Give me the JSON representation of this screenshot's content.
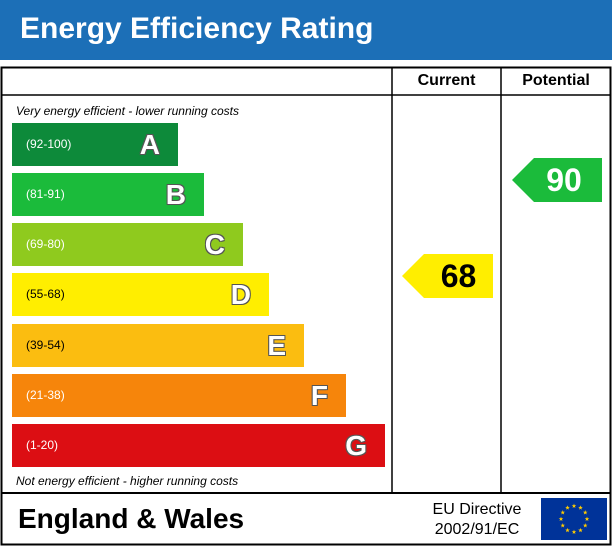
{
  "header": {
    "title": "Energy Efficiency Rating"
  },
  "columns": {
    "current": "Current",
    "potential": "Potential"
  },
  "notes": {
    "top": "Very energy efficient - lower running costs",
    "bottom": "Not energy efficient - higher running costs"
  },
  "chart_data": {
    "type": "bar",
    "title": "Energy Efficiency Rating",
    "bands": [
      {
        "letter": "A",
        "range": "(92-100)",
        "color": "#0d8a3a"
      },
      {
        "letter": "B",
        "range": "(81-91)",
        "color": "#1bbb3b"
      },
      {
        "letter": "C",
        "range": "(69-80)",
        "color": "#8fca1e"
      },
      {
        "letter": "D",
        "range": "(55-68)",
        "color": "#ffee00"
      },
      {
        "letter": "E",
        "range": "(39-54)",
        "color": "#fbbd10"
      },
      {
        "letter": "F",
        "range": "(21-38)",
        "color": "#f6850b"
      },
      {
        "letter": "G",
        "range": "(1-20)",
        "color": "#dc0e13"
      }
    ],
    "current": {
      "value": 68,
      "band": "D",
      "color": "#ffee00"
    },
    "potential": {
      "value": 90,
      "band": "B",
      "color": "#1bbb3b"
    }
  },
  "footer": {
    "region": "England & Wales",
    "directive_line1": "EU Directive",
    "directive_line2": "2002/91/EC"
  },
  "colors": {
    "header": "#1c6fb7",
    "eu_flag": "#003399",
    "eu_stars": "#ffcc00"
  }
}
